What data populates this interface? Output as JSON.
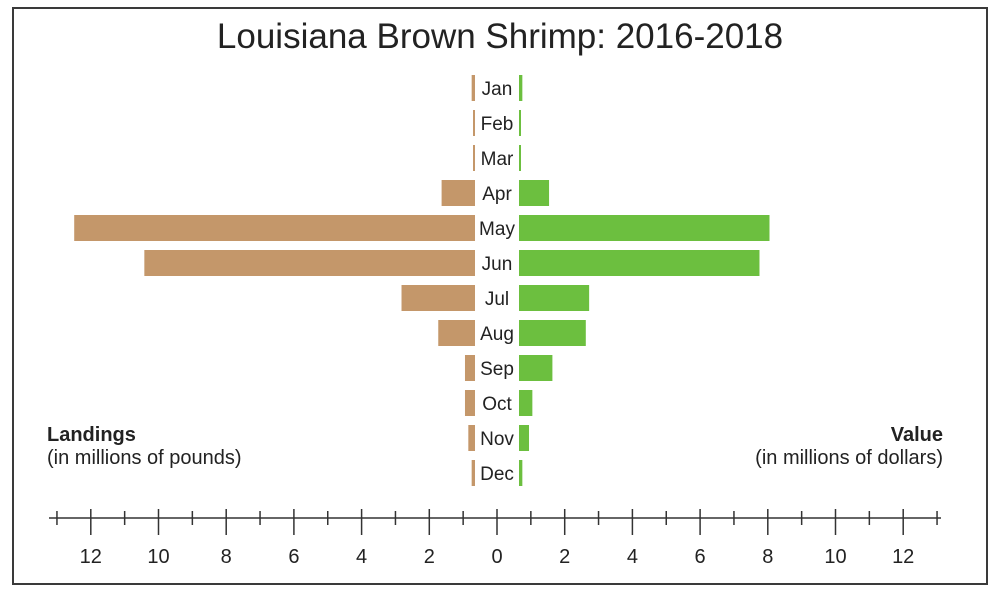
{
  "chart_data": {
    "type": "bar",
    "title": "Louisiana Brown Shrimp: 2016-2018",
    "categories": [
      "Jan",
      "Feb",
      "Mar",
      "Apr",
      "May",
      "Jun",
      "Jul",
      "Aug",
      "Sep",
      "Oct",
      "Nov",
      "Dec"
    ],
    "series": [
      {
        "name": "Landings",
        "side": "left",
        "values": [
          0.1,
          0.02,
          0.02,
          1.0,
          12.0,
          9.9,
          2.2,
          1.1,
          0.3,
          0.3,
          0.2,
          0.1
        ],
        "color": "#c4976a"
      },
      {
        "name": "Value",
        "side": "right",
        "values": [
          0.1,
          0.03,
          0.03,
          0.9,
          7.5,
          7.2,
          2.1,
          2.0,
          1.0,
          0.4,
          0.3,
          0.1
        ],
        "color": "#6cbf3f"
      }
    ],
    "left_label": "Landings",
    "left_unit": "(in millions of pounds)",
    "right_label": "Value",
    "right_unit": "(in millions of dollars)",
    "xlim": [
      0,
      13
    ],
    "left_ticks": [
      "12",
      "10",
      "8",
      "6",
      "4",
      "2",
      "0"
    ],
    "right_ticks": [
      "2",
      "4",
      "6",
      "8",
      "10",
      "12"
    ],
    "grid": false
  }
}
